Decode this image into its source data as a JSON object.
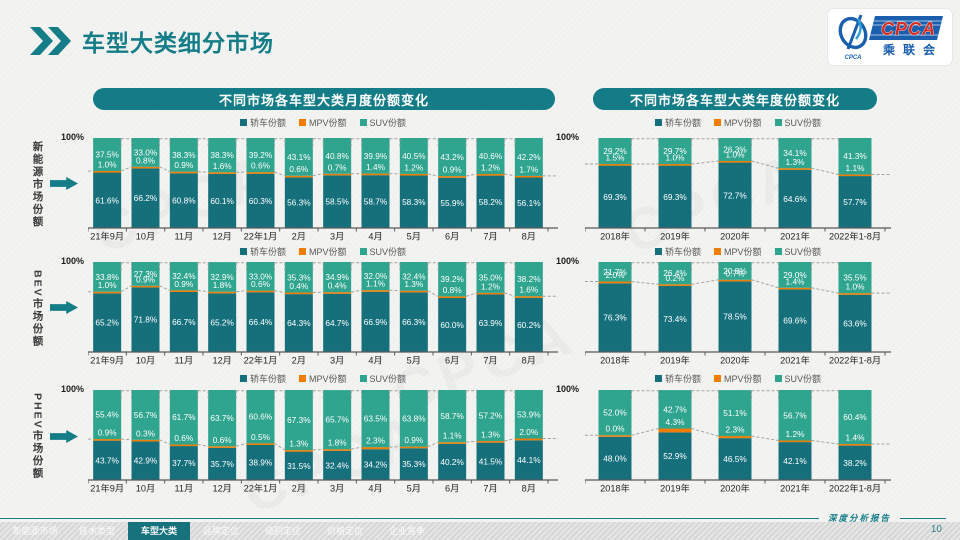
{
  "page": {
    "title": "车型大类细分市场",
    "page_number": "10",
    "report_label": "深度分析报告",
    "y_axis_label": "100%",
    "watermark": "CPCA"
  },
  "logo": {
    "brand": "CPCA",
    "brand_cn": "乘联会",
    "emblem_caption": "CPCA"
  },
  "column_headers": {
    "monthly": "不同市场各车型大类月度份额变化",
    "yearly": "不同市场各车型大类年度份额变化"
  },
  "rows": [
    {
      "label": "新能源市场份额"
    },
    {
      "label": "BEV市场份额"
    },
    {
      "label": "PHEV市场份额"
    }
  ],
  "legend_items": [
    {
      "label": "轿车份额",
      "color": "#16707b"
    },
    {
      "label": "MPV份额",
      "color": "#ee7d00"
    },
    {
      "label": "SUV份额",
      "color": "#2fa48e"
    }
  ],
  "colors": {
    "sedan": "#16707b",
    "mpv": "#ee7d00",
    "suv": "#2fa48e",
    "accent_teal": "#147c87",
    "dashed_line": "#a3a3a3",
    "axis": "#595959"
  },
  "footer": {
    "active_index": 2,
    "tabs": [
      "新能源市场",
      "技术类型",
      "车型大类",
      "品牌定位",
      "级别定位",
      "价格定位",
      "企业竞争"
    ]
  },
  "chart_data": [
    {
      "id": "nev-monthly",
      "type": "bar",
      "stacked": true,
      "unit": "%",
      "ylim": [
        0,
        100
      ],
      "row_label": "新能源市场份额",
      "title": "不同市场各车型大类月度份额变化",
      "col": "monthly",
      "categories": [
        "21年9月",
        "10月",
        "11月",
        "12月",
        "22年1月",
        "2月",
        "3月",
        "4月",
        "5月",
        "6月",
        "7月",
        "8月"
      ],
      "series": [
        {
          "name": "轿车份额",
          "color": "#16707b",
          "values": [
            61.6,
            66.2,
            60.8,
            60.1,
            60.3,
            56.3,
            58.5,
            58.7,
            58.3,
            55.9,
            58.2,
            56.1
          ]
        },
        {
          "name": "MPV份额",
          "color": "#ee7d00",
          "values": [
            1.0,
            0.8,
            0.9,
            1.6,
            0.6,
            0.6,
            0.7,
            1.4,
            1.2,
            0.9,
            1.2,
            1.7
          ]
        },
        {
          "name": "SUV份额",
          "color": "#2fa48e",
          "values": [
            37.5,
            33.0,
            38.3,
            38.3,
            39.2,
            43.1,
            40.8,
            39.9,
            40.5,
            43.2,
            40.6,
            42.2
          ]
        }
      ]
    },
    {
      "id": "nev-yearly",
      "type": "bar",
      "stacked": true,
      "unit": "%",
      "ylim": [
        0,
        100
      ],
      "row_label": "新能源市场份额",
      "title": "不同市场各车型大类年度份额变化",
      "col": "yearly",
      "categories": [
        "2018年",
        "2019年",
        "2020年",
        "2021年",
        "2022年1-8月"
      ],
      "series": [
        {
          "name": "轿车份额",
          "color": "#16707b",
          "values": [
            69.3,
            69.3,
            72.7,
            64.6,
            57.7
          ]
        },
        {
          "name": "MPV份额",
          "color": "#ee7d00",
          "values": [
            1.5,
            1.0,
            1.0,
            1.3,
            1.1
          ]
        },
        {
          "name": "SUV份额",
          "color": "#2fa48e",
          "values": [
            29.2,
            29.7,
            26.3,
            34.1,
            41.3
          ]
        }
      ]
    },
    {
      "id": "bev-monthly",
      "type": "bar",
      "stacked": true,
      "unit": "%",
      "ylim": [
        0,
        100
      ],
      "row_label": "BEV市场份额",
      "title": "不同市场各车型大类月度份额变化",
      "col": "monthly",
      "categories": [
        "21年9月",
        "10月",
        "11月",
        "12月",
        "22年1月",
        "2月",
        "3月",
        "4月",
        "5月",
        "6月",
        "7月",
        "8月"
      ],
      "series": [
        {
          "name": "轿车份额",
          "color": "#16707b",
          "values": [
            65.2,
            71.8,
            66.7,
            65.2,
            66.4,
            64.3,
            64.7,
            66.9,
            66.3,
            60.0,
            63.9,
            60.2
          ]
        },
        {
          "name": "MPV份额",
          "color": "#ee7d00",
          "values": [
            1.0,
            0.9,
            0.9,
            1.8,
            0.6,
            0.4,
            0.4,
            1.1,
            1.3,
            0.8,
            1.2,
            1.6
          ]
        },
        {
          "name": "SUV份额",
          "color": "#2fa48e",
          "values": [
            33.8,
            27.3,
            32.4,
            32.9,
            33.0,
            35.3,
            34.9,
            32.0,
            32.4,
            39.2,
            35.0,
            38.2
          ]
        }
      ]
    },
    {
      "id": "bev-yearly",
      "type": "bar",
      "stacked": true,
      "unit": "%",
      "ylim": [
        0,
        100
      ],
      "row_label": "BEV市场份额",
      "title": "不同市场各车型大类年度份额变化",
      "col": "yearly",
      "categories": [
        "2018年",
        "2019年",
        "2020年",
        "2021年",
        "2022年1-8月"
      ],
      "series": [
        {
          "name": "轿车份额",
          "color": "#16707b",
          "values": [
            76.3,
            73.4,
            78.5,
            69.6,
            63.6
          ]
        },
        {
          "name": "MPV份额",
          "color": "#ee7d00",
          "values": [
            2.0,
            0.2,
            0.7,
            1.4,
            1.0
          ]
        },
        {
          "name": "SUV份额",
          "color": "#2fa48e",
          "values": [
            21.7,
            26.4,
            20.8,
            29.0,
            35.5
          ]
        }
      ]
    },
    {
      "id": "phev-monthly",
      "type": "bar",
      "stacked": true,
      "unit": "%",
      "ylim": [
        0,
        100
      ],
      "row_label": "PHEV市场份额",
      "title": "不同市场各车型大类月度份额变化",
      "col": "monthly",
      "categories": [
        "21年9月",
        "10月",
        "11月",
        "12月",
        "22年1月",
        "2月",
        "3月",
        "4月",
        "5月",
        "6月",
        "7月",
        "8月"
      ],
      "series": [
        {
          "name": "轿车份额",
          "color": "#16707b",
          "values": [
            43.7,
            42.9,
            37.7,
            35.7,
            38.9,
            31.5,
            32.4,
            34.2,
            35.3,
            40.2,
            41.5,
            44.1
          ]
        },
        {
          "name": "MPV份额",
          "color": "#ee7d00",
          "values": [
            0.9,
            0.3,
            0.6,
            0.6,
            0.5,
            1.3,
            1.8,
            2.3,
            0.9,
            1.1,
            1.3,
            2.0
          ]
        },
        {
          "name": "SUV份额",
          "color": "#2fa48e",
          "values": [
            55.4,
            56.7,
            61.7,
            63.7,
            60.6,
            67.3,
            65.7,
            63.5,
            63.8,
            58.7,
            57.2,
            53.9
          ]
        }
      ]
    },
    {
      "id": "phev-yearly",
      "type": "bar",
      "stacked": true,
      "unit": "%",
      "ylim": [
        0,
        100
      ],
      "row_label": "PHEV市场份额",
      "title": "不同市场各车型大类年度份额变化",
      "col": "yearly",
      "categories": [
        "2018年",
        "2019年",
        "2020年",
        "2021年",
        "2022年1-8月"
      ],
      "series": [
        {
          "name": "轿车份额",
          "color": "#16707b",
          "values": [
            48.0,
            52.9,
            46.5,
            42.1,
            38.2
          ]
        },
        {
          "name": "MPV份额",
          "color": "#ee7d00",
          "values": [
            0.0,
            4.3,
            2.3,
            1.2,
            1.4
          ]
        },
        {
          "name": "SUV份额",
          "color": "#2fa48e",
          "values": [
            52.0,
            42.7,
            51.1,
            56.7,
            60.4
          ]
        }
      ]
    }
  ]
}
